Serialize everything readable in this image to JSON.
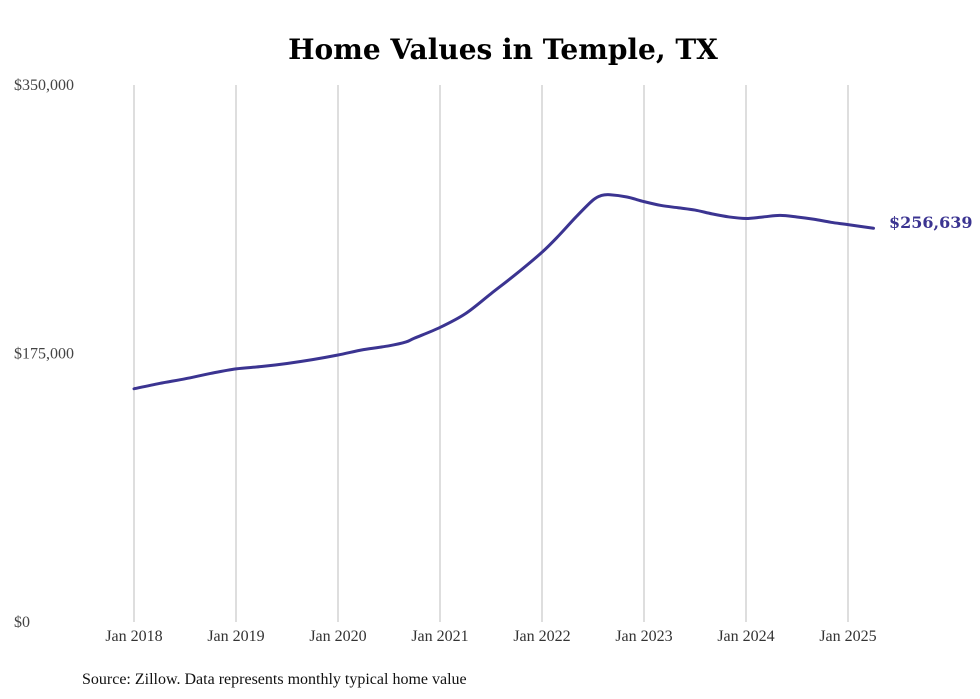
{
  "chart_data": {
    "type": "line",
    "title": "Home Values in Temple, TX",
    "source": "Source: Zillow. Data represents monthly typical home value",
    "y_ticks": [
      "$0",
      "$175,000",
      "$350,000"
    ],
    "y_tick_values": [
      0,
      175000,
      350000
    ],
    "ylim": [
      0,
      350000
    ],
    "x_ticks": [
      "Jan 2018",
      "Jan 2019",
      "Jan 2020",
      "Jan 2021",
      "Jan 2022",
      "Jan 2023",
      "Jan 2024",
      "Jan 2025"
    ],
    "xlim": [
      "2018-01",
      "2025-04"
    ],
    "grid": "vertical",
    "line_color": "#3b3491",
    "end_label": "$256,639",
    "series": [
      {
        "x": [
          "2018-01",
          "2018-04",
          "2018-07",
          "2018-10",
          "2019-01",
          "2019-04",
          "2019-07",
          "2019-10",
          "2020-01",
          "2020-04",
          "2020-07",
          "2020-09",
          "2020-10",
          "2021-01",
          "2021-04",
          "2021-07",
          "2021-10",
          "2022-01",
          "2022-03",
          "2022-05",
          "2022-07",
          "2022-08",
          "2022-09",
          "2022-11",
          "2023-01",
          "2023-03",
          "2023-05",
          "2023-07",
          "2023-09",
          "2023-11",
          "2024-01",
          "2024-03",
          "2024-05",
          "2024-07",
          "2024-09",
          "2024-11",
          "2025-01",
          "2025-04"
        ],
        "y": [
          152000,
          155500,
          158500,
          162000,
          165000,
          166500,
          168500,
          171000,
          174000,
          177500,
          180000,
          182500,
          185000,
          192000,
          201000,
          214000,
          227000,
          241000,
          252000,
          264000,
          275000,
          278000,
          278500,
          277000,
          274000,
          271500,
          270000,
          268500,
          266000,
          264000,
          263000,
          264000,
          265000,
          264000,
          262500,
          260500,
          259000,
          256639
        ]
      }
    ]
  }
}
